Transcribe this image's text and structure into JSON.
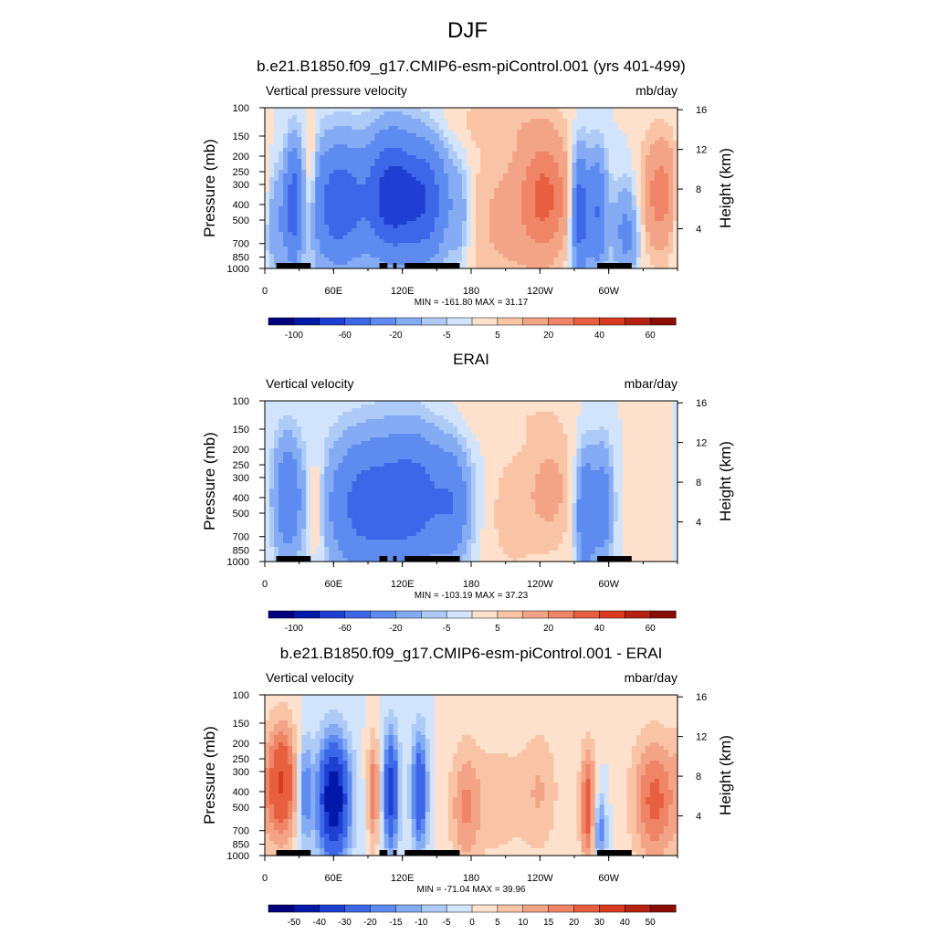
{
  "title": "DJF",
  "colorbar": {
    "colors": [
      "#00007f",
      "#0019a8",
      "#1f3fd2",
      "#3d67e8",
      "#5d8bf0",
      "#84abf3",
      "#aecbf7",
      "#d2e4fb",
      "#fde1cd",
      "#f9c4a6",
      "#f4a486",
      "#ef8466",
      "#e85f40",
      "#d93a20",
      "#b6220f",
      "#8a0d02"
    ],
    "ticks_top": [
      "-100",
      "-60",
      "-20",
      "-5",
      "5",
      "20",
      "40",
      "60"
    ],
    "ticks_bottom": [
      "-50",
      "-40",
      "-30",
      "-20",
      "-15",
      "-10",
      "-5",
      "0",
      "5",
      "10",
      "15",
      "20",
      "30",
      "40",
      "50"
    ]
  },
  "chart_data": [
    {
      "type": "heatmap",
      "title": "b.e21.B1850.f09_g17.CMIP6-esm-piControl.001 (yrs 401-499)",
      "left_label": "Vertical pressure velocity",
      "right_label": "mb/day",
      "ylabel": "Pressure (mb)",
      "y2label": "Height (km)",
      "stats": "MIN = -161.80  MAX =  31.17",
      "x_ticks": [
        "0",
        "60E",
        "120E",
        "180",
        "120W",
        "60W"
      ],
      "y_ticks": [
        "100",
        "150",
        "200",
        "250",
        "300",
        "400",
        "500",
        "700",
        "850",
        "1000"
      ],
      "y2_ticks": [
        "16",
        "12",
        "8",
        "4"
      ],
      "colorbar_ticks": "top",
      "min": -161.8,
      "max": 31.17,
      "blobs": [
        {
          "lon": 10,
          "lon_w": 8,
          "p": 500,
          "p_w": 1.0,
          "v": -20
        },
        {
          "lon": 25,
          "lon_w": 5,
          "p": 400,
          "p_w": 1.1,
          "v": -45
        },
        {
          "lon": 40,
          "lon_w": 4,
          "p": 300,
          "p_w": 1.0,
          "v": 18
        },
        {
          "lon": 65,
          "lon_w": 18,
          "p": 400,
          "p_w": 1.1,
          "v": -55
        },
        {
          "lon": 110,
          "lon_w": 14,
          "p": 350,
          "p_w": 1.1,
          "v": -70
        },
        {
          "lon": 140,
          "lon_w": 14,
          "p": 380,
          "p_w": 1.1,
          "v": -55
        },
        {
          "lon": 170,
          "lon_w": 6,
          "p": 450,
          "p_w": 0.9,
          "v": -15
        },
        {
          "lon": 210,
          "lon_w": 25,
          "p": 500,
          "p_w": 1.4,
          "v": 12
        },
        {
          "lon": 245,
          "lon_w": 15,
          "p": 350,
          "p_w": 1.1,
          "v": 30
        },
        {
          "lon": 275,
          "lon_w": 5,
          "p": 450,
          "p_w": 1.1,
          "v": -55
        },
        {
          "lon": 290,
          "lon_w": 6,
          "p": 450,
          "p_w": 1.1,
          "v": -40
        },
        {
          "lon": 315,
          "lon_w": 8,
          "p": 600,
          "p_w": 0.9,
          "v": -25
        },
        {
          "lon": 345,
          "lon_w": 12,
          "p": 350,
          "p_w": 1.1,
          "v": 25
        },
        {
          "lon": 200,
          "lon_w": 40,
          "p": 120,
          "p_w": 0.5,
          "v": 6
        }
      ]
    },
    {
      "type": "heatmap",
      "title": "ERAI",
      "left_label": "Vertical velocity",
      "right_label": "mbar/day",
      "ylabel": "Pressure (mb)",
      "y2label": "Height (km)",
      "stats": "MIN = -103.19  MAX =  37.23",
      "x_ticks": [
        "0",
        "60E",
        "120E",
        "180",
        "120W",
        "60W"
      ],
      "y_ticks": [
        "100",
        "150",
        "200",
        "250",
        "300",
        "400",
        "500",
        "700",
        "850",
        "1000"
      ],
      "y2_ticks": [
        "16",
        "12",
        "8",
        "4"
      ],
      "colorbar_ticks": "top",
      "min": -103.19,
      "max": 37.23,
      "blobs": [
        {
          "lon": 20,
          "lon_w": 9,
          "p": 400,
          "p_w": 1.1,
          "v": -35
        },
        {
          "lon": 45,
          "lon_w": 5,
          "p": 450,
          "p_w": 1.0,
          "v": 12
        },
        {
          "lon": 85,
          "lon_w": 22,
          "p": 450,
          "p_w": 1.2,
          "v": -45
        },
        {
          "lon": 130,
          "lon_w": 22,
          "p": 400,
          "p_w": 1.2,
          "v": -50
        },
        {
          "lon": 165,
          "lon_w": 10,
          "p": 450,
          "p_w": 1.0,
          "v": -25
        },
        {
          "lon": 215,
          "lon_w": 15,
          "p": 500,
          "p_w": 1.2,
          "v": 8
        },
        {
          "lon": 250,
          "lon_w": 15,
          "p": 350,
          "p_w": 1.2,
          "v": 12
        },
        {
          "lon": 280,
          "lon_w": 6,
          "p": 500,
          "p_w": 1.1,
          "v": -40
        },
        {
          "lon": 295,
          "lon_w": 6,
          "p": 450,
          "p_w": 1.1,
          "v": -30
        },
        {
          "lon": 335,
          "lon_w": 12,
          "p": 450,
          "p_w": 1.1,
          "v": 5
        },
        {
          "lon": 200,
          "lon_w": 40,
          "p": 120,
          "p_w": 0.5,
          "v": 4
        }
      ]
    },
    {
      "type": "heatmap",
      "title": "b.e21.B1850.f09_g17.CMIP6-esm-piControl.001 - ERAI",
      "left_label": "Vertical velocity",
      "right_label": "mbar/day",
      "ylabel": "Pressure (mb)",
      "y2label": "Height (km)",
      "stats": "MIN = -71.04  MAX =  39.96",
      "x_ticks": [
        "0",
        "60E",
        "120E",
        "180",
        "120W",
        "60W"
      ],
      "y_ticks": [
        "100",
        "150",
        "200",
        "250",
        "300",
        "400",
        "500",
        "700",
        "850",
        "1000"
      ],
      "y2_ticks": [
        "16",
        "12",
        "8",
        "4"
      ],
      "colorbar_ticks": "bottom",
      "min": -71.04,
      "max": 39.96,
      "blobs": [
        {
          "lon": 15,
          "lon_w": 9,
          "p": 350,
          "p_w": 1.1,
          "v": 30
        },
        {
          "lon": 35,
          "lon_w": 4,
          "p": 400,
          "p_w": 1.0,
          "v": -20
        },
        {
          "lon": 60,
          "lon_w": 10,
          "p": 450,
          "p_w": 1.1,
          "v": -50
        },
        {
          "lon": 95,
          "lon_w": 4,
          "p": 400,
          "p_w": 1.0,
          "v": 20
        },
        {
          "lon": 110,
          "lon_w": 5,
          "p": 400,
          "p_w": 1.1,
          "v": -35
        },
        {
          "lon": 135,
          "lon_w": 5,
          "p": 400,
          "p_w": 1.1,
          "v": -30
        },
        {
          "lon": 175,
          "lon_w": 10,
          "p": 500,
          "p_w": 1.2,
          "v": 15
        },
        {
          "lon": 205,
          "lon_w": 15,
          "p": 450,
          "p_w": 1.2,
          "v": 8
        },
        {
          "lon": 240,
          "lon_w": 12,
          "p": 400,
          "p_w": 1.2,
          "v": 10
        },
        {
          "lon": 282,
          "lon_w": 5,
          "p": 500,
          "p_w": 1.1,
          "v": 25
        },
        {
          "lon": 292,
          "lon_w": 4,
          "p": 700,
          "p_w": 0.7,
          "v": -20
        },
        {
          "lon": 340,
          "lon_w": 14,
          "p": 450,
          "p_w": 1.2,
          "v": 22
        }
      ]
    }
  ]
}
